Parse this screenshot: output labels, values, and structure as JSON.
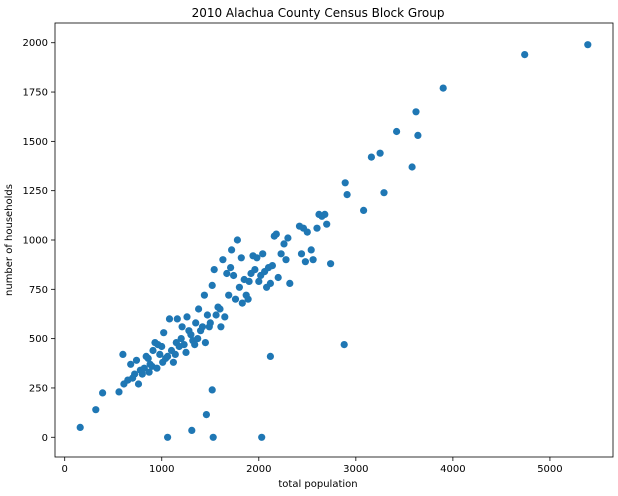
{
  "chart_data": {
    "type": "scatter",
    "title": "2010 Alachua County Census Block Group",
    "xlabel": "total population",
    "ylabel": "number of households",
    "xlim": [
      -100,
      5650
    ],
    "ylim": [
      -100,
      2100
    ],
    "xticks": [
      0,
      1000,
      2000,
      3000,
      4000,
      5000
    ],
    "yticks": [
      0,
      250,
      500,
      750,
      1000,
      1250,
      1500,
      1750,
      2000
    ],
    "grid": false,
    "legend": "none",
    "marker_color": "#1f77b4",
    "points": [
      {
        "x": 160,
        "y": 50
      },
      {
        "x": 320,
        "y": 140
      },
      {
        "x": 390,
        "y": 225
      },
      {
        "x": 560,
        "y": 230
      },
      {
        "x": 600,
        "y": 420
      },
      {
        "x": 610,
        "y": 270
      },
      {
        "x": 650,
        "y": 290
      },
      {
        "x": 680,
        "y": 370
      },
      {
        "x": 700,
        "y": 300
      },
      {
        "x": 720,
        "y": 320
      },
      {
        "x": 740,
        "y": 390
      },
      {
        "x": 760,
        "y": 270
      },
      {
        "x": 780,
        "y": 340
      },
      {
        "x": 800,
        "y": 320
      },
      {
        "x": 820,
        "y": 350
      },
      {
        "x": 840,
        "y": 410
      },
      {
        "x": 860,
        "y": 400
      },
      {
        "x": 870,
        "y": 330
      },
      {
        "x": 880,
        "y": 370
      },
      {
        "x": 900,
        "y": 360
      },
      {
        "x": 910,
        "y": 440
      },
      {
        "x": 930,
        "y": 480
      },
      {
        "x": 950,
        "y": 350
      },
      {
        "x": 960,
        "y": 470
      },
      {
        "x": 980,
        "y": 420
      },
      {
        "x": 1000,
        "y": 460
      },
      {
        "x": 1010,
        "y": 380
      },
      {
        "x": 1020,
        "y": 530
      },
      {
        "x": 1040,
        "y": 400
      },
      {
        "x": 1060,
        "y": 410
      },
      {
        "x": 1080,
        "y": 600
      },
      {
        "x": 1100,
        "y": 440
      },
      {
        "x": 1120,
        "y": 380
      },
      {
        "x": 1140,
        "y": 420
      },
      {
        "x": 1150,
        "y": 480
      },
      {
        "x": 1160,
        "y": 600
      },
      {
        "x": 1180,
        "y": 460
      },
      {
        "x": 1200,
        "y": 500
      },
      {
        "x": 1210,
        "y": 560
      },
      {
        "x": 1230,
        "y": 470
      },
      {
        "x": 1250,
        "y": 430
      },
      {
        "x": 1260,
        "y": 610
      },
      {
        "x": 1280,
        "y": 540
      },
      {
        "x": 1300,
        "y": 520
      },
      {
        "x": 1320,
        "y": 490
      },
      {
        "x": 1340,
        "y": 470
      },
      {
        "x": 1350,
        "y": 580
      },
      {
        "x": 1370,
        "y": 500
      },
      {
        "x": 1380,
        "y": 650
      },
      {
        "x": 1400,
        "y": 540
      },
      {
        "x": 1420,
        "y": 560
      },
      {
        "x": 1440,
        "y": 720
      },
      {
        "x": 1450,
        "y": 480
      },
      {
        "x": 1470,
        "y": 620
      },
      {
        "x": 1490,
        "y": 560
      },
      {
        "x": 1500,
        "y": 580
      },
      {
        "x": 1520,
        "y": 770
      },
      {
        "x": 1540,
        "y": 850
      },
      {
        "x": 1560,
        "y": 620
      },
      {
        "x": 1580,
        "y": 660
      },
      {
        "x": 1600,
        "y": 650
      },
      {
        "x": 1610,
        "y": 560
      },
      {
        "x": 1630,
        "y": 900
      },
      {
        "x": 1650,
        "y": 610
      },
      {
        "x": 1670,
        "y": 830
      },
      {
        "x": 1690,
        "y": 720
      },
      {
        "x": 1710,
        "y": 860
      },
      {
        "x": 1720,
        "y": 950
      },
      {
        "x": 1740,
        "y": 820
      },
      {
        "x": 1760,
        "y": 700
      },
      {
        "x": 1780,
        "y": 1000
      },
      {
        "x": 1800,
        "y": 760
      },
      {
        "x": 1820,
        "y": 910
      },
      {
        "x": 1830,
        "y": 680
      },
      {
        "x": 1850,
        "y": 800
      },
      {
        "x": 1870,
        "y": 720
      },
      {
        "x": 1890,
        "y": 700
      },
      {
        "x": 1900,
        "y": 790
      },
      {
        "x": 1920,
        "y": 830
      },
      {
        "x": 1940,
        "y": 920
      },
      {
        "x": 1960,
        "y": 850
      },
      {
        "x": 1980,
        "y": 910
      },
      {
        "x": 2000,
        "y": 790
      },
      {
        "x": 2020,
        "y": 820
      },
      {
        "x": 2040,
        "y": 930
      },
      {
        "x": 2060,
        "y": 840
      },
      {
        "x": 2080,
        "y": 760
      },
      {
        "x": 2100,
        "y": 860
      },
      {
        "x": 2120,
        "y": 780
      },
      {
        "x": 2140,
        "y": 870
      },
      {
        "x": 2160,
        "y": 1020
      },
      {
        "x": 2180,
        "y": 1030
      },
      {
        "x": 2200,
        "y": 810
      },
      {
        "x": 2230,
        "y": 930
      },
      {
        "x": 2260,
        "y": 980
      },
      {
        "x": 2280,
        "y": 900
      },
      {
        "x": 2300,
        "y": 1010
      },
      {
        "x": 2320,
        "y": 780
      },
      {
        "x": 2420,
        "y": 1070
      },
      {
        "x": 2440,
        "y": 930
      },
      {
        "x": 2460,
        "y": 1060
      },
      {
        "x": 2480,
        "y": 890
      },
      {
        "x": 2500,
        "y": 1040
      },
      {
        "x": 2540,
        "y": 950
      },
      {
        "x": 2560,
        "y": 900
      },
      {
        "x": 2600,
        "y": 1060
      },
      {
        "x": 2620,
        "y": 1130
      },
      {
        "x": 2650,
        "y": 1120
      },
      {
        "x": 2680,
        "y": 1130
      },
      {
        "x": 2700,
        "y": 1080
      },
      {
        "x": 2740,
        "y": 880
      },
      {
        "x": 2890,
        "y": 1290
      },
      {
        "x": 2910,
        "y": 1230
      },
      {
        "x": 3080,
        "y": 1150
      },
      {
        "x": 3160,
        "y": 1420
      },
      {
        "x": 3250,
        "y": 1440
      },
      {
        "x": 3290,
        "y": 1240
      },
      {
        "x": 3420,
        "y": 1550
      },
      {
        "x": 3580,
        "y": 1370
      },
      {
        "x": 3620,
        "y": 1650
      },
      {
        "x": 3640,
        "y": 1530
      },
      {
        "x": 3900,
        "y": 1770
      },
      {
        "x": 4740,
        "y": 1940
      },
      {
        "x": 5390,
        "y": 1990
      },
      {
        "x": 2120,
        "y": 410
      },
      {
        "x": 2880,
        "y": 470
      },
      {
        "x": 1520,
        "y": 240
      },
      {
        "x": 1460,
        "y": 115
      },
      {
        "x": 1310,
        "y": 35
      },
      {
        "x": 1060,
        "y": 0
      },
      {
        "x": 1530,
        "y": 0
      },
      {
        "x": 2030,
        "y": 0
      }
    ]
  }
}
